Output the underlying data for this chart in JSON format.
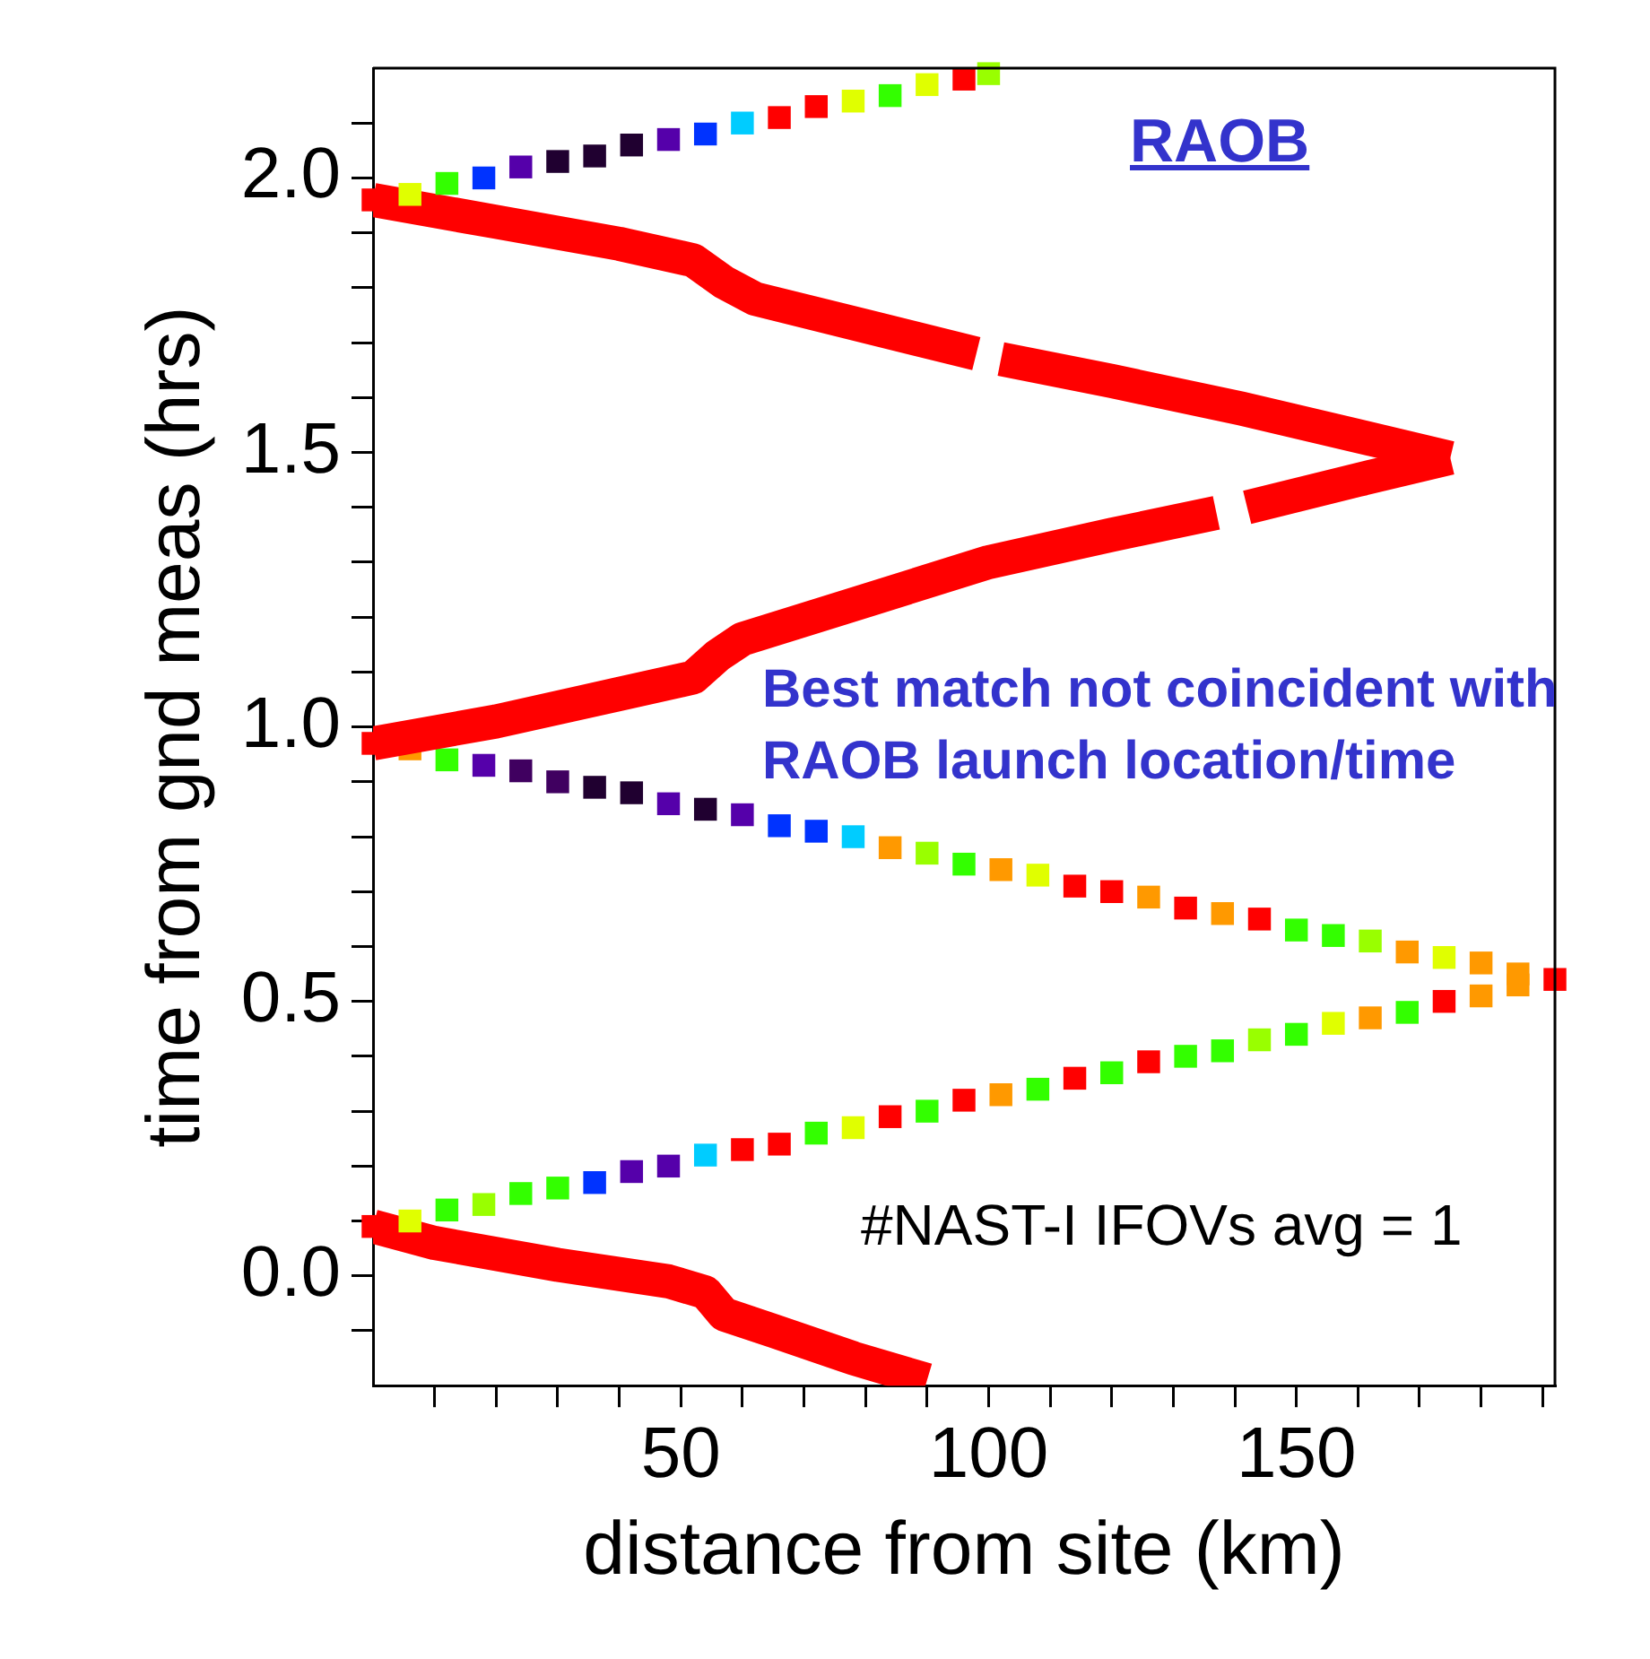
{
  "chart_data": {
    "type": "scatter",
    "xlabel": "distance from site (km)",
    "ylabel": "time from gnd meas (hrs)",
    "annotations": [
      "RAOB",
      "Best match not coincident with RAOB launch location/time",
      "#NAST-I IFOVs avg = 1"
    ],
    "xlim": [
      0,
      192
    ],
    "ylim": [
      -0.2,
      2.2
    ],
    "xticks": [
      {
        "value": 10,
        "label": null
      },
      {
        "value": 20,
        "label": null
      },
      {
        "value": 30,
        "label": null
      },
      {
        "value": 40,
        "label": null
      },
      50,
      {
        "value": 60,
        "label": null
      },
      {
        "value": 70,
        "label": null
      },
      {
        "value": 80,
        "label": null
      },
      {
        "value": 90,
        "label": null
      },
      100,
      {
        "value": 110,
        "label": null
      },
      {
        "value": 120,
        "label": null
      },
      {
        "value": 130,
        "label": null
      },
      {
        "value": 140,
        "label": null
      },
      150,
      {
        "value": 160,
        "label": null
      },
      {
        "value": 170,
        "label": null
      },
      {
        "value": 180,
        "label": null
      },
      {
        "value": 190,
        "label": null
      }
    ],
    "yticks": [
      {
        "value": -0.1,
        "label": null
      },
      {
        "value": 0,
        "label": "0.0"
      },
      {
        "value": 0.1,
        "label": null
      },
      {
        "value": 0.2,
        "label": null
      },
      {
        "value": 0.3,
        "label": null
      },
      {
        "value": 0.4,
        "label": null
      },
      {
        "value": 0.5,
        "label": "0.5"
      },
      {
        "value": 0.6,
        "label": null
      },
      {
        "value": 0.7,
        "label": null
      },
      {
        "value": 0.8,
        "label": null
      },
      {
        "value": 0.9,
        "label": null
      },
      {
        "value": 1,
        "label": "1.0"
      },
      {
        "value": 1.1,
        "label": null
      },
      {
        "value": 1.2,
        "label": null
      },
      {
        "value": 1.3,
        "label": null
      },
      {
        "value": 1.4,
        "label": null
      },
      {
        "value": 1.5,
        "label": "1.5"
      },
      {
        "value": 1.6,
        "label": null
      },
      {
        "value": 1.7,
        "label": null
      },
      {
        "value": 1.8,
        "label": null
      },
      {
        "value": 1.9,
        "label": null
      },
      {
        "value": 2,
        "label": "2.0"
      },
      {
        "value": 2.1,
        "label": null
      }
    ],
    "marker": "square",
    "series": [
      {
        "type": "line",
        "marker": "none",
        "color": "#ff0000",
        "x": [
          0,
          10,
          30,
          48,
          54,
          57,
          65,
          78,
          90
        ],
        "values": [
          0.09,
          0.06,
          0.02,
          -0.01,
          -0.03,
          -0.07,
          -0.1,
          -0.15,
          -0.19
        ]
      },
      {
        "type": "scatter",
        "x": [
          0,
          6,
          12,
          18,
          24,
          30,
          36,
          42,
          48,
          54,
          60,
          66,
          72,
          78,
          84,
          90,
          96,
          102,
          108,
          114,
          120,
          126,
          132,
          138,
          144,
          150,
          156,
          162,
          168,
          174,
          180,
          186,
          192
        ],
        "values": [
          0.09,
          0.1,
          0.12,
          0.13,
          0.15,
          0.16,
          0.17,
          0.19,
          0.2,
          0.22,
          0.23,
          0.24,
          0.26,
          0.27,
          0.29,
          0.3,
          0.32,
          0.33,
          0.34,
          0.36,
          0.37,
          0.39,
          0.4,
          0.41,
          0.43,
          0.44,
          0.46,
          0.47,
          0.48,
          0.5,
          0.51,
          0.53,
          0.54
        ],
        "colors": [
          "#ff0000",
          "#e0ff00",
          "#33ff00",
          "#99ff00",
          "#33ff00",
          "#33ff00",
          "#0033ff",
          "#5500aa",
          "#5500aa",
          "#00ccff",
          "#ff0000",
          "#ff0000",
          "#33ff00",
          "#e0ff00",
          "#ff0000",
          "#33ff00",
          "#ff0000",
          "#ff9900",
          "#33ff00",
          "#ff0000",
          "#33ff00",
          "#ff0000",
          "#33ff00",
          "#33ff00",
          "#99ff00",
          "#33ff00",
          "#e0ff00",
          "#ff9900",
          "#33ff00",
          "#ff0000",
          "#ff9900",
          "#ff9900",
          "#ff0000"
        ]
      },
      {
        "type": "scatter",
        "x": [
          186,
          180,
          174,
          168,
          162,
          156,
          150,
          144,
          138,
          132,
          126,
          120,
          114,
          108,
          102,
          96,
          90,
          84,
          78,
          72,
          66,
          60,
          54,
          48,
          42,
          36,
          30,
          24,
          18,
          12,
          6,
          0
        ],
        "values": [
          0.55,
          0.57,
          0.58,
          0.59,
          0.61,
          0.62,
          0.63,
          0.65,
          0.66,
          0.67,
          0.69,
          0.7,
          0.71,
          0.73,
          0.74,
          0.75,
          0.77,
          0.78,
          0.8,
          0.81,
          0.82,
          0.84,
          0.85,
          0.86,
          0.88,
          0.89,
          0.9,
          0.92,
          0.93,
          0.94,
          0.96,
          0.97
        ],
        "colors": [
          "#ff9900",
          "#ff9900",
          "#e0ff00",
          "#ff9900",
          "#99ff00",
          "#33ff00",
          "#33ff00",
          "#ff0000",
          "#ff9900",
          "#ff0000",
          "#ff9900",
          "#ff0000",
          "#ff0000",
          "#e0ff00",
          "#ff9900",
          "#33ff00",
          "#99ff00",
          "#ff9900",
          "#00ccff",
          "#0033ff",
          "#0033ff",
          "#5500aa",
          "#200030",
          "#5500aa",
          "#200030",
          "#200030",
          "#400060",
          "#400060",
          "#5500aa",
          "#33ff00",
          "#ff9900",
          "#ff0000"
        ]
      },
      {
        "type": "line",
        "marker": "none",
        "color": "#ff0000",
        "x": [
          0,
          20,
          40,
          52,
          56,
          60,
          80,
          100,
          120,
          137
        ],
        "values": [
          0.97,
          1.01,
          1.06,
          1.09,
          1.13,
          1.16,
          1.23,
          1.3,
          1.35,
          1.39
        ]
      },
      {
        "type": "line",
        "marker": "none",
        "color": "#ff0000",
        "x": [
          142,
          160,
          175
        ],
        "values": [
          1.4,
          1.45,
          1.49
        ]
      },
      {
        "type": "line",
        "marker": "none",
        "color": "#ff0000",
        "x": [
          175,
          160,
          141,
          120,
          102
        ],
        "values": [
          1.49,
          1.53,
          1.58,
          1.63,
          1.67
        ]
      },
      {
        "type": "line",
        "marker": "none",
        "color": "#ff0000",
        "x": [
          98,
          80,
          62,
          57,
          52,
          40,
          20,
          0
        ],
        "values": [
          1.68,
          1.73,
          1.78,
          1.81,
          1.85,
          1.88,
          1.92,
          1.96
        ]
      },
      {
        "type": "scatter",
        "x": [
          0,
          6,
          12,
          18,
          24,
          30,
          36,
          42,
          48,
          54,
          60,
          66,
          72,
          78,
          84,
          90,
          96,
          100
        ],
        "values": [
          1.96,
          1.97,
          1.99,
          2,
          2.02,
          2.03,
          2.04,
          2.06,
          2.07,
          2.08,
          2.1,
          2.11,
          2.13,
          2.14,
          2.15,
          2.17,
          2.18,
          2.19
        ],
        "colors": [
          "#ff0000",
          "#e0ff00",
          "#33ff00",
          "#0033ff",
          "#5500aa",
          "#200030",
          "#200030",
          "#200030",
          "#5500aa",
          "#0033ff",
          "#00ccff",
          "#ff0000",
          "#ff0000",
          "#e0ff00",
          "#33ff00",
          "#e0ff00",
          "#ff0000",
          "#99ff00"
        ]
      }
    ]
  }
}
